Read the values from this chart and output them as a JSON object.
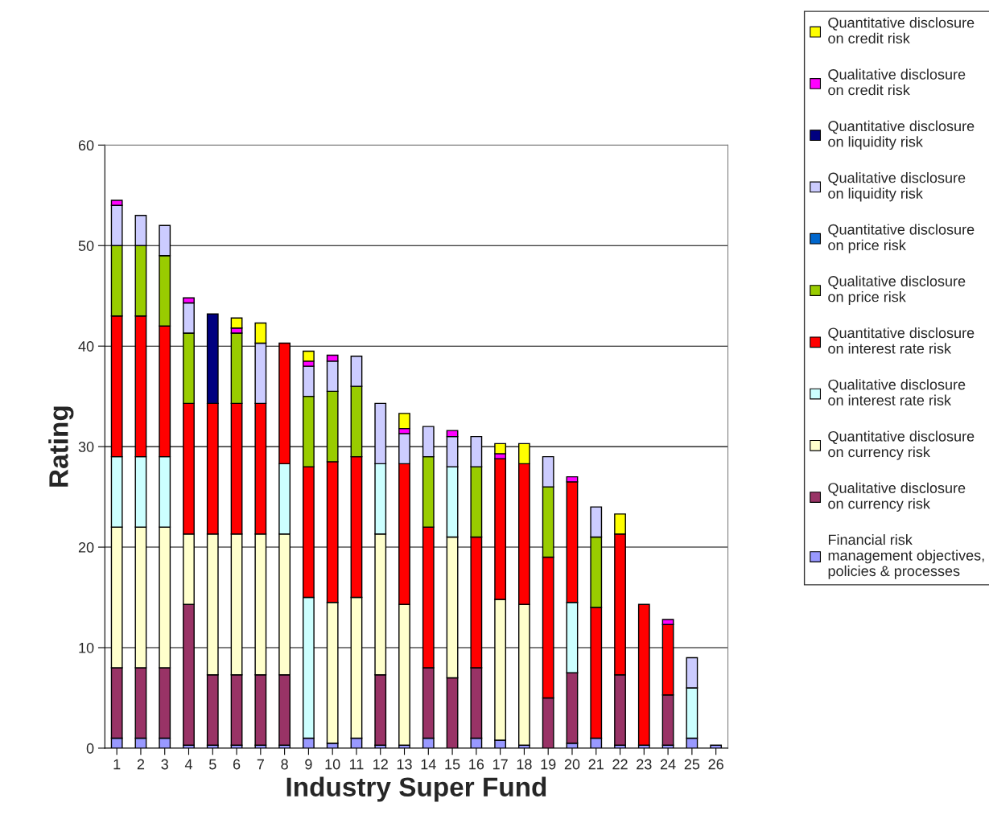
{
  "chart_data": {
    "type": "bar",
    "stacked": true,
    "xlabel": "Industry Super Fund",
    "ylabel": "Rating",
    "categories": [
      "1",
      "2",
      "3",
      "4",
      "5",
      "6",
      "7",
      "8",
      "9",
      "10",
      "11",
      "12",
      "13",
      "14",
      "15",
      "16",
      "17",
      "18",
      "19",
      "20",
      "21",
      "22",
      "23",
      "24",
      "25",
      "26"
    ],
    "ylim": [
      0,
      60
    ],
    "yticks": [
      0,
      10,
      20,
      30,
      40,
      50,
      60
    ],
    "grid": "y",
    "legend": "right",
    "series": [
      {
        "name": "Financial risk\nmanagement objectives,\npolicies & processes",
        "color": "#9999ff",
        "values": [
          1,
          1,
          1,
          0.3,
          0.3,
          0.3,
          0.3,
          0.3,
          1,
          0.5,
          1,
          0.3,
          0.3,
          1,
          0,
          1,
          0.8,
          0.3,
          0,
          0.5,
          1,
          0.3,
          0.3,
          0.3,
          1,
          0.3
        ]
      },
      {
        "name": "Qualitative disclosure\non currency risk",
        "color": "#993366",
        "values": [
          7,
          7,
          7,
          14,
          7,
          7,
          7,
          7,
          0,
          0,
          0,
          7,
          0,
          7,
          7,
          7,
          0,
          0,
          5,
          7,
          0,
          7,
          0,
          5,
          0,
          0
        ]
      },
      {
        "name": "Quantitative disclosure\non currency risk",
        "color": "#ffffcc",
        "values": [
          14,
          14,
          14,
          7,
          14,
          14,
          14,
          14,
          0,
          14,
          14,
          14,
          14,
          0,
          14,
          0,
          14,
          14,
          0,
          0,
          0,
          0,
          0,
          0,
          0,
          0
        ]
      },
      {
        "name": "Qualitative disclosure\non interest rate risk",
        "color": "#ccffff",
        "values": [
          7,
          7,
          7,
          0,
          0,
          0,
          0,
          7,
          14,
          0,
          0,
          7,
          0,
          0,
          7,
          0,
          0,
          0,
          0,
          7,
          0,
          0,
          0,
          0,
          5,
          0
        ]
      },
      {
        "name": "Quantitative disclosure\non interest rate risk",
        "color": "#ff0000",
        "values": [
          14,
          14,
          13,
          13,
          13,
          13,
          13,
          12,
          13,
          14,
          14,
          0,
          14,
          14,
          0,
          13,
          14,
          14,
          14,
          12,
          13,
          14,
          14,
          7,
          0,
          0
        ]
      },
      {
        "name": "Qualitative disclosure\non price risk",
        "color": "#99cc00",
        "values": [
          7,
          7,
          7,
          7,
          0,
          7,
          0,
          0,
          7,
          7,
          7,
          0,
          0,
          7,
          0,
          7,
          0,
          0,
          7,
          0,
          7,
          0,
          0,
          0,
          0,
          0
        ]
      },
      {
        "name": "Quantitative disclosure\non price risk",
        "color": "#0066cc",
        "values": [
          0,
          0,
          0,
          0,
          0,
          0,
          0,
          0,
          0,
          0,
          0,
          0,
          0,
          0,
          0,
          0,
          0,
          0,
          0,
          0,
          0,
          0,
          0,
          0,
          0,
          0
        ]
      },
      {
        "name": "Qualitative disclosure\non liquidity risk",
        "color": "#ccccff",
        "values": [
          4,
          3,
          3,
          3,
          0,
          0,
          6,
          0,
          3,
          3,
          3,
          6,
          3,
          3,
          3,
          3,
          0,
          0,
          3,
          0,
          3,
          0,
          0,
          0,
          3,
          0
        ]
      },
      {
        "name": "Quantitative disclosure\non liquidity risk",
        "color": "#000080",
        "values": [
          0,
          0,
          0,
          0,
          8.9,
          0,
          0,
          0,
          0,
          0,
          0,
          0,
          0,
          0,
          0,
          0,
          0,
          0,
          0,
          0,
          0,
          0,
          0,
          0,
          0,
          0
        ]
      },
      {
        "name": "Qualitative disclosure\non credit risk",
        "color": "#ff00ff",
        "values": [
          0.5,
          0,
          0,
          0.5,
          0,
          0.5,
          0,
          0,
          0.5,
          0.6,
          0,
          0,
          0.5,
          0,
          0.6,
          0,
          0.5,
          0,
          0,
          0.5,
          0,
          0,
          0,
          0.5,
          0,
          0
        ]
      },
      {
        "name": "Quantitative disclosure\non credit risk",
        "color": "#ffff00",
        "values": [
          0,
          0,
          0,
          0,
          0,
          1,
          2,
          0,
          1,
          0,
          0,
          0,
          1.5,
          0,
          0,
          0,
          1,
          2,
          0,
          0,
          0,
          2,
          0,
          0,
          0,
          0
        ]
      }
    ]
  }
}
